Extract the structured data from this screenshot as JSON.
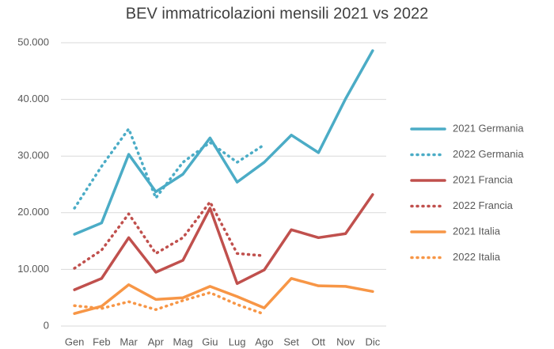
{
  "chart_data": {
    "type": "line",
    "title": "BEV immatricolazioni mensili 2021 vs 2022",
    "categories": [
      "Gen",
      "Feb",
      "Mar",
      "Apr",
      "Mag",
      "Giu",
      "Lug",
      "Ago",
      "Set",
      "Ott",
      "Nov",
      "Dic"
    ],
    "series": [
      {
        "name": "2021 Germania",
        "color": "#4bacc6",
        "style": "solid",
        "values": [
          16200,
          18200,
          30300,
          23700,
          26800,
          33200,
          25400,
          28900,
          33700,
          30600,
          40100,
          48600
        ]
      },
      {
        "name": "2022 Germania",
        "color": "#4bacc6",
        "style": "dotted",
        "values": [
          20800,
          28200,
          34800,
          22600,
          28900,
          32400,
          28900,
          32000,
          null,
          null,
          null,
          null
        ]
      },
      {
        "name": "2021 Francia",
        "color": "#c0504d",
        "style": "solid",
        "values": [
          6400,
          8400,
          15600,
          9500,
          11600,
          20800,
          7500,
          9900,
          17000,
          15600,
          16300,
          23200
        ]
      },
      {
        "name": "2022 Francia",
        "color": "#c0504d",
        "style": "dotted",
        "values": [
          10200,
          13400,
          19800,
          12800,
          15600,
          21900,
          12800,
          12400,
          null,
          null,
          null,
          null
        ]
      },
      {
        "name": "2021 Italia",
        "color": "#f79646",
        "style": "solid",
        "values": [
          2200,
          3500,
          7300,
          4700,
          5000,
          7000,
          5200,
          3200,
          8400,
          7100,
          7000,
          6100
        ]
      },
      {
        "name": "2022 Italia",
        "color": "#f79646",
        "style": "dotted",
        "values": [
          3600,
          3100,
          4300,
          2900,
          4500,
          5900,
          3800,
          2100,
          null,
          null,
          null,
          null
        ]
      }
    ],
    "ylim": [
      0,
      50000
    ],
    "yticks": [
      0,
      {
        "value": 10000,
        "label": "10.000"
      },
      {
        "value": 20000,
        "label": "20.000"
      },
      {
        "value": 30000,
        "label": "30.000"
      },
      {
        "value": 40000,
        "label": "40.000"
      },
      {
        "value": 50000,
        "label": "50.000"
      }
    ],
    "grid": true,
    "legend": "right"
  }
}
